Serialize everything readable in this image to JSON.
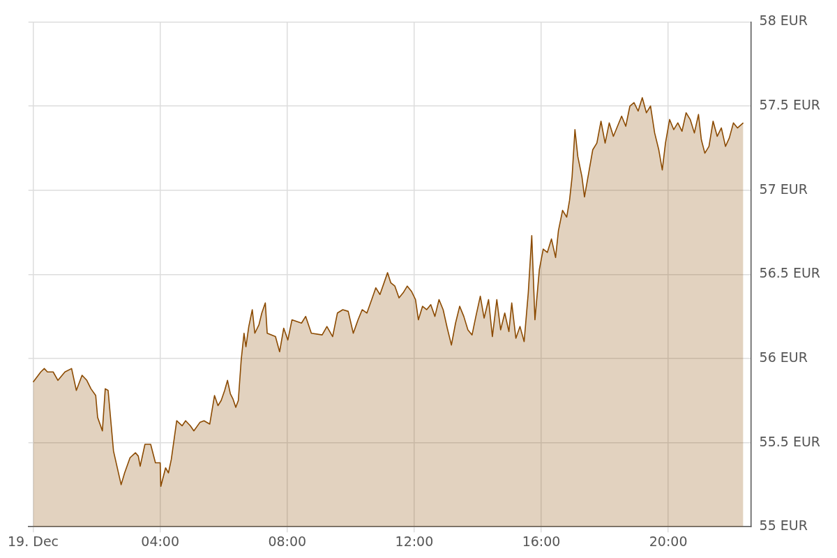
{
  "chart_data": {
    "type": "area",
    "grid": true,
    "xlim": [
      -0.15,
      22.6
    ],
    "xticks": [
      {
        "value": 0,
        "label": "19. Dec"
      },
      {
        "value": 4,
        "label": "04:00"
      },
      {
        "value": 8,
        "label": "08:00"
      },
      {
        "value": 12,
        "label": "12:00"
      },
      {
        "value": 16,
        "label": "16:00"
      },
      {
        "value": 20,
        "label": "20:00"
      }
    ],
    "ylim": [
      55,
      58
    ],
    "yticks": [
      {
        "value": 55,
        "label": "55 EUR"
      },
      {
        "value": 55.5,
        "label": "55.5 EUR"
      },
      {
        "value": 56,
        "label": "56 EUR"
      },
      {
        "value": 56.5,
        "label": "56.5 EUR"
      },
      {
        "value": 57,
        "label": "57 EUR"
      },
      {
        "value": 57.5,
        "label": "57.5 EUR"
      },
      {
        "value": 58,
        "label": "58 EUR"
      }
    ],
    "series": [
      {
        "color": "#8b4a00",
        "x": [
          0,
          0.24,
          0.35,
          0.45,
          0.63,
          0.78,
          1.0,
          1.21,
          1.36,
          1.54,
          1.69,
          1.82,
          1.97,
          2.03,
          2.18,
          2.27,
          2.36,
          2.53,
          2.77,
          2.88,
          3.05,
          3.22,
          3.31,
          3.37,
          3.52,
          3.7,
          3.85,
          4.0,
          4.02,
          4.17,
          4.26,
          4.35,
          4.52,
          4.69,
          4.8,
          4.95,
          5.06,
          5.25,
          5.38,
          5.56,
          5.71,
          5.82,
          5.92,
          6.03,
          6.12,
          6.21,
          6.29,
          6.38,
          6.46,
          6.55,
          6.64,
          6.7,
          6.79,
          6.9,
          6.98,
          7.11,
          7.2,
          7.31,
          7.37,
          7.63,
          7.76,
          7.89,
          8.02,
          8.15,
          8.45,
          8.58,
          8.76,
          9.1,
          9.25,
          9.43,
          9.58,
          9.75,
          9.92,
          10.08,
          10.23,
          10.36,
          10.51,
          10.66,
          10.79,
          10.92,
          11.16,
          11.26,
          11.39,
          11.52,
          11.65,
          11.78,
          11.91,
          12.04,
          12.13,
          12.26,
          12.39,
          12.52,
          12.65,
          12.78,
          12.91,
          13.04,
          13.17,
          13.3,
          13.43,
          13.56,
          13.69,
          13.82,
          13.94,
          14.08,
          14.2,
          14.34,
          14.46,
          14.6,
          14.72,
          14.85,
          14.98,
          15.07,
          15.2,
          15.33,
          15.46,
          15.59,
          15.7,
          15.8,
          15.94,
          16.06,
          16.19,
          16.32,
          16.45,
          16.54,
          16.67,
          16.8,
          16.89,
          16.97,
          17.06,
          17.15,
          17.28,
          17.36,
          17.49,
          17.62,
          17.75,
          17.88,
          18.01,
          18.14,
          18.27,
          18.4,
          18.53,
          18.66,
          18.79,
          18.92,
          19.05,
          19.18,
          19.31,
          19.44,
          19.57,
          19.7,
          19.81,
          19.91,
          20.04,
          20.17,
          20.3,
          20.43,
          20.56,
          20.69,
          20.82,
          20.95,
          21.04,
          21.15,
          21.28,
          21.41,
          21.54,
          21.67,
          21.8,
          21.92,
          22.05,
          22.18,
          22.36
        ],
        "values": [
          55.86,
          55.92,
          55.94,
          55.92,
          55.92,
          55.87,
          55.92,
          55.94,
          55.81,
          55.9,
          55.87,
          55.82,
          55.78,
          55.65,
          55.57,
          55.82,
          55.81,
          55.45,
          55.25,
          55.32,
          55.41,
          55.44,
          55.42,
          55.36,
          55.49,
          55.49,
          55.38,
          55.38,
          55.24,
          55.35,
          55.32,
          55.4,
          55.63,
          55.6,
          55.63,
          55.6,
          55.57,
          55.62,
          55.63,
          55.61,
          55.78,
          55.72,
          55.75,
          55.81,
          55.87,
          55.79,
          55.76,
          55.71,
          55.75,
          55.99,
          56.15,
          56.07,
          56.19,
          56.29,
          56.15,
          56.2,
          56.27,
          56.33,
          56.15,
          56.13,
          56.04,
          56.18,
          56.11,
          56.23,
          56.21,
          56.25,
          56.15,
          56.14,
          56.19,
          56.13,
          56.27,
          56.29,
          56.28,
          56.15,
          56.23,
          56.29,
          56.27,
          56.35,
          56.42,
          56.38,
          56.51,
          56.45,
          56.43,
          56.36,
          56.39,
          56.43,
          56.4,
          56.35,
          56.23,
          56.31,
          56.29,
          56.32,
          56.25,
          56.35,
          56.29,
          56.18,
          56.08,
          56.21,
          56.31,
          56.25,
          56.17,
          56.14,
          56.25,
          56.37,
          56.24,
          56.35,
          56.13,
          56.35,
          56.17,
          56.27,
          56.16,
          56.33,
          56.12,
          56.19,
          56.1,
          56.39,
          56.73,
          56.23,
          56.53,
          56.65,
          56.63,
          56.71,
          56.6,
          56.76,
          56.88,
          56.84,
          56.94,
          57.08,
          57.36,
          57.2,
          57.08,
          56.96,
          57.1,
          57.24,
          57.28,
          57.41,
          57.28,
          57.4,
          57.32,
          57.38,
          57.44,
          57.38,
          57.5,
          57.52,
          57.47,
          57.55,
          57.46,
          57.5,
          57.34,
          57.24,
          57.12,
          57.28,
          57.42,
          57.36,
          57.4,
          57.35,
          57.46,
          57.42,
          57.34,
          57.45,
          57.3,
          57.22,
          57.26,
          57.41,
          57.32,
          57.37,
          57.26,
          57.31,
          57.4,
          57.37,
          57.4
        ]
      }
    ]
  }
}
